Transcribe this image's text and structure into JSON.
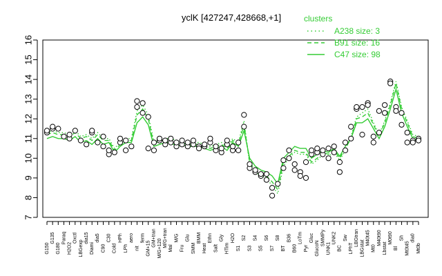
{
  "chart_data": {
    "type": "line",
    "title": "yclK [427247,428668,+1]",
    "ylim": [
      7,
      16
    ],
    "yticks": [
      7,
      8,
      9,
      10,
      11,
      12,
      13,
      14,
      15,
      16
    ],
    "legend": {
      "position": "top-right",
      "title": "clusters",
      "entries": [
        {
          "label": "A238 size: 3",
          "style": "dotted"
        },
        {
          "label": "B91 size: 16",
          "style": "dashed"
        },
        {
          "label": "C47 size: 98",
          "style": "solid"
        }
      ]
    },
    "xtick_labels": [
      "G150",
      "G135",
      "G180",
      "Paraq",
      "H2O2",
      "Oxctl",
      "LBGexp",
      "dia15",
      "Diami",
      "dia5",
      "C90",
      "C30",
      "Cold",
      "HPh",
      "LPh",
      "aero",
      "nit",
      "ferm",
      "GM+15",
      "GM+tran",
      "M/G+120",
      "M/G+tran",
      "Mal",
      "M/G",
      "Fru",
      "Glu",
      "SMM",
      "BMM",
      "Heat",
      "Ethn",
      "Salt",
      "Gly",
      "HTim",
      "H2O",
      "S1",
      "S2",
      "S3",
      "S4",
      "S5",
      "S6",
      "S7",
      "S8",
      "BT",
      "B36",
      "B60",
      "LoTm",
      "Pyr",
      "Gluc",
      "GlucoN",
      "SMMPy",
      "UNK1",
      "UNK2",
      "BC",
      "Sw",
      "LPhT",
      "LBGtran",
      "LBGstat",
      "M40t45",
      "Mt0",
      "M40t90",
      "Lbstat",
      "M0t90",
      "Bl",
      "Sh",
      "Mt0t45",
      "dia0",
      "Mt0b"
    ],
    "series": [
      {
        "style": "solid",
        "values": [
          11.0,
          11.1,
          11.0,
          11.0,
          10.9,
          11.1,
          10.8,
          10.9,
          10.7,
          11.0,
          10.7,
          10.8,
          10.3,
          10.6,
          10.8,
          10.8,
          11.8,
          12.1,
          11.7,
          10.6,
          10.7,
          10.8,
          10.8,
          10.6,
          10.7,
          10.6,
          10.6,
          10.6,
          10.5,
          10.4,
          10.5,
          10.6,
          10.4,
          10.8,
          10.6,
          11.4,
          10.0,
          9.6,
          9.4,
          9.3,
          9.1,
          8.7,
          10.0,
          10.3,
          10.6,
          10.5,
          10.5,
          10.0,
          10.2,
          10.4,
          10.3,
          10.5,
          10.1,
          10.6,
          11.0,
          11.8,
          11.8,
          12.0,
          11.5,
          11.0,
          11.6,
          12.5,
          13.5,
          12.3,
          11.6,
          11.0,
          10.9
        ]
      },
      {
        "style": "dashed",
        "values": [
          11.2,
          11.3,
          11.2,
          11.2,
          11.1,
          11.3,
          11.0,
          11.1,
          10.9,
          11.2,
          10.9,
          10.9,
          10.4,
          10.7,
          10.9,
          10.9,
          12.2,
          12.5,
          12.0,
          10.7,
          10.9,
          10.9,
          10.9,
          10.8,
          10.8,
          10.7,
          10.7,
          10.7,
          10.6,
          10.5,
          10.6,
          10.7,
          10.5,
          10.9,
          10.7,
          11.7,
          9.8,
          9.4,
          9.2,
          9.1,
          8.8,
          8.4,
          9.8,
          10.1,
          10.4,
          10.3,
          10.3,
          9.8,
          10.0,
          10.3,
          10.2,
          10.4,
          10.0,
          10.5,
          11.0,
          12.0,
          12.1,
          12.3,
          11.7,
          11.1,
          11.8,
          12.7,
          13.8,
          12.5,
          11.8,
          11.1,
          11.0
        ]
      },
      {
        "style": "dotted",
        "values": [
          11.3,
          11.4,
          11.3,
          11.3,
          11.2,
          11.4,
          11.1,
          11.2,
          11.0,
          11.3,
          11.0,
          11.0,
          10.5,
          10.8,
          11.0,
          11.0,
          12.4,
          12.7,
          12.2,
          10.8,
          11.0,
          11.0,
          11.0,
          10.9,
          10.9,
          10.8,
          10.8,
          10.8,
          10.7,
          10.6,
          10.7,
          10.8,
          10.6,
          11.0,
          10.8,
          11.9,
          9.7,
          9.3,
          9.1,
          9.0,
          8.6,
          8.2,
          9.6,
          10.0,
          10.3,
          10.2,
          10.2,
          9.7,
          9.9,
          10.2,
          10.1,
          10.3,
          9.9,
          10.4,
          11.1,
          12.1,
          12.3,
          12.5,
          11.8,
          11.2,
          11.9,
          12.8,
          13.9,
          12.6,
          11.9,
          11.2,
          11.1
        ]
      }
    ],
    "points": [
      [
        0,
        11.3
      ],
      [
        0,
        11.4
      ],
      [
        1,
        11.5
      ],
      [
        1,
        11.6
      ],
      [
        2,
        11.5
      ],
      [
        3,
        11.1
      ],
      [
        4,
        11.0
      ],
      [
        4,
        11.2
      ],
      [
        5,
        11.4
      ],
      [
        6,
        10.9
      ],
      [
        7,
        10.7
      ],
      [
        8,
        11.3
      ],
      [
        8,
        11.4
      ],
      [
        9,
        10.8
      ],
      [
        10,
        10.6
      ],
      [
        10,
        11.1
      ],
      [
        11,
        10.2
      ],
      [
        11,
        10.4
      ],
      [
        12,
        10.3
      ],
      [
        13,
        10.8
      ],
      [
        13,
        11.0
      ],
      [
        14,
        10.4
      ],
      [
        14,
        10.9
      ],
      [
        15,
        10.6
      ],
      [
        16,
        12.9
      ],
      [
        16,
        12.6
      ],
      [
        17,
        12.8
      ],
      [
        17,
        12.3
      ],
      [
        18,
        12.1
      ],
      [
        18,
        10.5
      ],
      [
        19,
        10.4
      ],
      [
        19,
        10.8
      ],
      [
        20,
        10.9
      ],
      [
        20,
        11.0
      ],
      [
        21,
        10.7
      ],
      [
        21,
        10.9
      ],
      [
        22,
        10.8
      ],
      [
        22,
        11.0
      ],
      [
        23,
        10.6
      ],
      [
        23,
        10.8
      ],
      [
        24,
        10.7
      ],
      [
        24,
        10.9
      ],
      [
        25,
        10.6
      ],
      [
        25,
        10.8
      ],
      [
        26,
        10.7
      ],
      [
        26,
        10.9
      ],
      [
        27,
        10.6
      ],
      [
        27,
        10.5
      ],
      [
        28,
        10.6
      ],
      [
        28,
        10.7
      ],
      [
        29,
        10.8
      ],
      [
        29,
        11.0
      ],
      [
        30,
        10.4
      ],
      [
        30,
        10.6
      ],
      [
        31,
        10.3
      ],
      [
        31,
        10.5
      ],
      [
        32,
        10.7
      ],
      [
        32,
        10.9
      ],
      [
        33,
        10.4
      ],
      [
        33,
        10.6
      ],
      [
        34,
        10.4
      ],
      [
        34,
        10.8
      ],
      [
        35,
        12.2
      ],
      [
        35,
        11.6
      ],
      [
        36,
        9.5
      ],
      [
        36,
        9.7
      ],
      [
        37,
        9.3
      ],
      [
        37,
        9.4
      ],
      [
        38,
        9.1
      ],
      [
        38,
        9.2
      ],
      [
        39,
        9.2
      ],
      [
        39,
        8.9
      ],
      [
        40,
        8.1
      ],
      [
        40,
        8.5
      ],
      [
        41,
        8.7
      ],
      [
        42,
        9.5
      ],
      [
        42,
        9.9
      ],
      [
        43,
        10.0
      ],
      [
        43,
        10.4
      ],
      [
        44,
        9.7
      ],
      [
        44,
        9.4
      ],
      [
        45,
        9.3
      ],
      [
        45,
        9.1
      ],
      [
        46,
        9.0
      ],
      [
        46,
        9.8
      ],
      [
        47,
        10.2
      ],
      [
        47,
        10.4
      ],
      [
        48,
        10.3
      ],
      [
        48,
        10.5
      ],
      [
        49,
        10.2
      ],
      [
        49,
        10.4
      ],
      [
        50,
        10.0
      ],
      [
        50,
        10.5
      ],
      [
        51,
        10.3
      ],
      [
        51,
        10.6
      ],
      [
        52,
        9.3
      ],
      [
        52,
        9.8
      ],
      [
        53,
        10.4
      ],
      [
        53,
        10.8
      ],
      [
        54,
        11.6
      ],
      [
        54,
        11.0
      ],
      [
        55,
        12.5
      ],
      [
        55,
        12.6
      ],
      [
        56,
        12.6
      ],
      [
        56,
        11.2
      ],
      [
        57,
        12.8
      ],
      [
        57,
        12.7
      ],
      [
        58,
        11.1
      ],
      [
        58,
        10.8
      ],
      [
        59,
        11.3
      ],
      [
        59,
        12.4
      ],
      [
        60,
        12.7
      ],
      [
        60,
        12.3
      ],
      [
        61,
        13.9
      ],
      [
        61,
        13.8
      ],
      [
        62,
        12.6
      ],
      [
        62,
        12.4
      ],
      [
        63,
        11.7
      ],
      [
        63,
        12.3
      ],
      [
        64,
        11.3
      ],
      [
        64,
        10.8
      ],
      [
        65,
        10.9
      ],
      [
        65,
        10.8
      ],
      [
        66,
        11.0
      ],
      [
        66,
        10.9
      ]
    ]
  }
}
